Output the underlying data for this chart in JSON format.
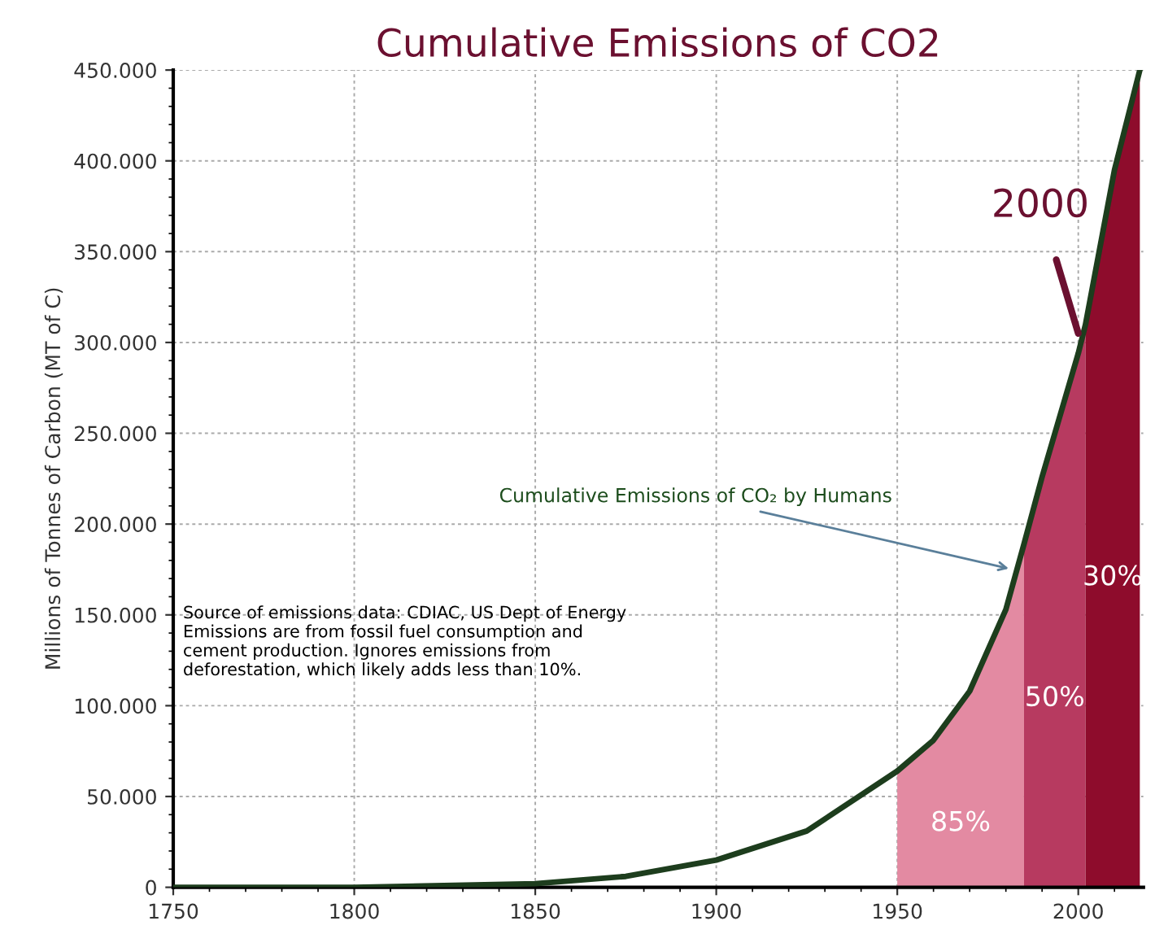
{
  "chart_data": {
    "type": "line",
    "title": "Cumulative Emissions of CO2",
    "ylabel": "Millions of Tonnes of Carbon (MT of C)",
    "xlim": [
      1750,
      2018
    ],
    "xticks": [
      1750,
      1800,
      1850,
      1900,
      1950,
      2000
    ],
    "ylim": [
      0,
      450000
    ],
    "yticks": [
      {
        "value": 0,
        "label": "0"
      },
      {
        "value": 50000,
        "label": "50.000"
      },
      {
        "value": 100000,
        "label": "100.000"
      },
      {
        "value": 150000,
        "label": "150.000"
      },
      {
        "value": 200000,
        "label": "200.000"
      },
      {
        "value": 250000,
        "label": "250.000"
      },
      {
        "value": 300000,
        "label": "300.000"
      },
      {
        "value": 350000,
        "label": "350.000"
      },
      {
        "value": 400000,
        "label": "400.000"
      },
      {
        "value": 450000,
        "label": "450.000"
      }
    ],
    "grid": true,
    "series": [
      {
        "type": "area",
        "color": "#e38aa2",
        "x": [
          1950,
          1960,
          1970,
          1980,
          1985
        ],
        "values": [
          64000,
          81000,
          108000,
          153000,
          189000
        ]
      },
      {
        "type": "area",
        "color": "#b73a60",
        "x": [
          1985,
          1990,
          2000,
          2002
        ],
        "values": [
          189000,
          226000,
          294000,
          310000
        ]
      },
      {
        "type": "area",
        "color": "#8e0c2c",
        "x": [
          2002,
          2010,
          2017
        ],
        "values": [
          310000,
          395000,
          450000
        ]
      },
      {
        "color": "#1d3d1d",
        "x": [
          1750,
          1800,
          1850,
          1875,
          1900,
          1925,
          1950,
          1960,
          1970,
          1980,
          1985,
          1990,
          2000,
          2002,
          2010,
          2017
        ],
        "values": [
          0,
          0,
          2000,
          6000,
          15000,
          31000,
          64000,
          81000,
          108000,
          153000,
          189000,
          226000,
          294000,
          310000,
          395000,
          450000
        ]
      }
    ],
    "annotations": [
      {
        "text": "Cumulative Emissions of CO₂ by Humans",
        "x": 1982,
        "y": 175000
      },
      {
        "text": "2000",
        "x": 2000,
        "y": 305000
      },
      "85%",
      "50%",
      "30%",
      "Source of emissions data: CDIAC, US Dept of Energy\nEmissions are from fossil fuel consumption and\ncement production. Ignores emissions from\ndeforestation, which likely adds less than 10%."
    ]
  }
}
